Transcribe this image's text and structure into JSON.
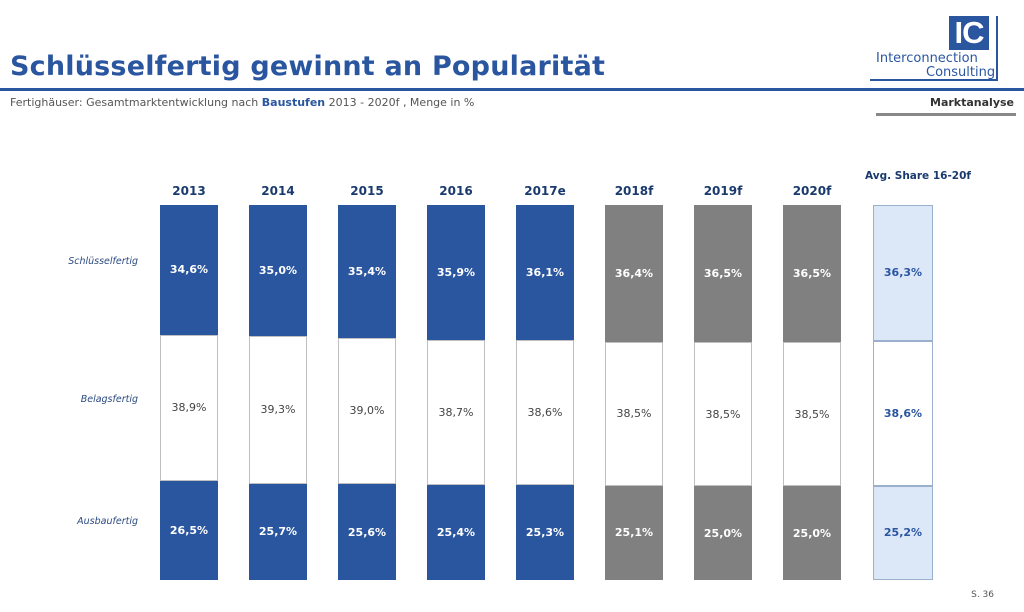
{
  "header": {
    "title": "Schlüsselfertig gewinnt an Popularität",
    "subtitle_pre": "Fertighäuser: Gesamtmarktentwicklung nach ",
    "subtitle_highlight": "Baustufen",
    "subtitle_post": " 2013 - 2020f , Menge in %",
    "section": "Marktanalyse"
  },
  "logo": {
    "mark": "IC",
    "line1": "Interconnection",
    "line2": "Consulting"
  },
  "footer": {
    "page": "S. 36"
  },
  "colors": {
    "blue": "#2a56a0",
    "gray": "#808080",
    "avg_light": "#dce7f7"
  },
  "chart_data": {
    "type": "bar",
    "stacked": true,
    "categories": [
      "2013",
      "2014",
      "2015",
      "2016",
      "2017e",
      "2018f",
      "2019f",
      "2020f",
      "Avg. Share 16-20f"
    ],
    "series": [
      {
        "name": "Schlüsselfertig",
        "values": [
          34.6,
          35.0,
          35.4,
          35.9,
          36.1,
          36.4,
          36.5,
          36.5,
          36.3
        ],
        "labels": [
          "34,6%",
          "35,0%",
          "35,4%",
          "35,9%",
          "36,1%",
          "36,4%",
          "36,5%",
          "36,5%",
          "36,3%"
        ]
      },
      {
        "name": "Belagsfertig",
        "values": [
          38.9,
          39.3,
          39.0,
          38.7,
          38.6,
          38.5,
          38.5,
          38.5,
          38.6
        ],
        "labels": [
          "38,9%",
          "39,3%",
          "39,0%",
          "38,7%",
          "38,6%",
          "38,5%",
          "38,5%",
          "38,5%",
          "38,6%"
        ]
      },
      {
        "name": "Ausbaufertig",
        "values": [
          26.5,
          25.7,
          25.6,
          25.4,
          25.3,
          25.1,
          25.0,
          25.0,
          25.2
        ],
        "labels": [
          "26,5%",
          "25,7%",
          "25,6%",
          "25,4%",
          "25,3%",
          "25,1%",
          "25,0%",
          "25,0%",
          "25,2%"
        ]
      }
    ],
    "column_style": [
      "blue",
      "blue",
      "blue",
      "blue",
      "blue",
      "gray",
      "gray",
      "gray",
      "avg"
    ],
    "ylim": [
      0,
      100
    ]
  }
}
